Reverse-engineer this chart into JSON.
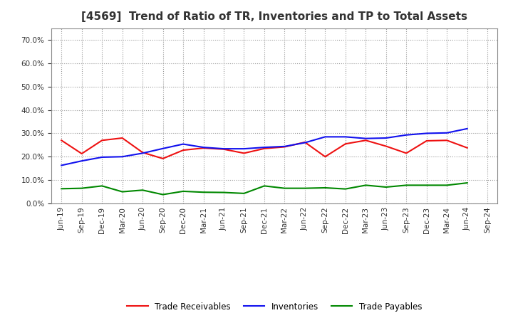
{
  "title": "[4569]  Trend of Ratio of TR, Inventories and TP to Total Assets",
  "x_labels": [
    "Jun-19",
    "Sep-19",
    "Dec-19",
    "Mar-20",
    "Jun-20",
    "Sep-20",
    "Dec-20",
    "Mar-21",
    "Jun-21",
    "Sep-21",
    "Dec-21",
    "Mar-22",
    "Jun-22",
    "Sep-22",
    "Dec-22",
    "Mar-23",
    "Jun-23",
    "Sep-23",
    "Dec-23",
    "Mar-24",
    "Jun-24",
    "Sep-24"
  ],
  "trade_receivables": [
    0.27,
    0.213,
    0.27,
    0.28,
    0.218,
    0.192,
    0.228,
    0.237,
    0.232,
    0.215,
    0.235,
    0.242,
    0.262,
    0.2,
    0.255,
    0.27,
    0.245,
    0.215,
    0.268,
    0.27,
    0.238,
    null
  ],
  "inventories": [
    0.163,
    0.182,
    0.198,
    0.2,
    0.215,
    0.235,
    0.254,
    0.24,
    0.234,
    0.234,
    0.24,
    0.244,
    0.26,
    0.285,
    0.285,
    0.278,
    0.28,
    0.293,
    0.3,
    0.302,
    0.32,
    null
  ],
  "trade_payables": [
    0.063,
    0.065,
    0.075,
    0.05,
    0.057,
    0.038,
    0.052,
    0.048,
    0.047,
    0.043,
    0.075,
    0.065,
    0.065,
    0.067,
    0.062,
    0.078,
    0.07,
    0.078,
    0.078,
    0.078,
    0.088,
    null
  ],
  "tr_color": "#EE1111",
  "inv_color": "#1111EE",
  "tp_color": "#008800",
  "ylim": [
    0.0,
    0.75
  ],
  "yticks": [
    0.0,
    0.1,
    0.2,
    0.3,
    0.4,
    0.5,
    0.6,
    0.7
  ],
  "background_color": "#FFFFFF",
  "grid_color": "#999999",
  "title_fontsize": 11,
  "tick_fontsize": 7.5,
  "legend_labels": [
    "Trade Receivables",
    "Inventories",
    "Trade Payables"
  ]
}
